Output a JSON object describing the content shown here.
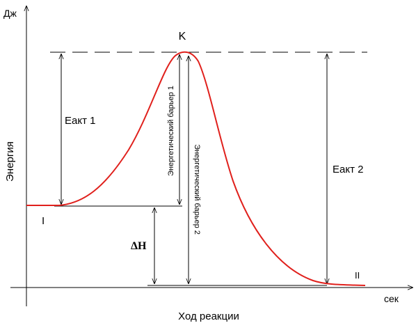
{
  "axes": {
    "y_unit": "Дж",
    "y_label": "Энергия",
    "x_unit": "сек",
    "x_label": "Ход реакции"
  },
  "labels": {
    "transition_state": "K",
    "activation_energy_1": "Еакт 1",
    "activation_energy_2": "Еакт 2",
    "barrier_1": "Энергетический барьер 1",
    "barrier_2": "Энергетический барьер 2",
    "state_1": "I",
    "state_2": "II",
    "enthalpy": "ΔH"
  }
}
